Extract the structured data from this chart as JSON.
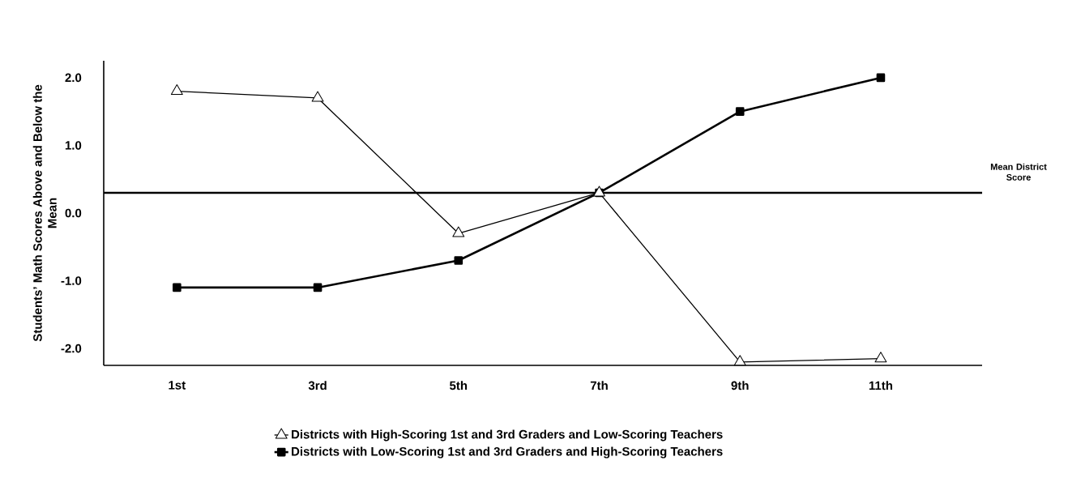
{
  "chart_data": {
    "type": "line",
    "ylabel": "Students’ Math Scores Above and Below the Mean",
    "categories": [
      "1st",
      "3rd",
      "5th",
      "7th",
      "9th",
      "11th"
    ],
    "series": [
      {
        "name": "Districts with High-Scoring 1st and 3rd Graders and Low-Scoring Teachers",
        "color": "#000000",
        "marker": "triangle",
        "values": [
          1.8,
          1.7,
          -0.3,
          0.3,
          -2.2,
          -2.15
        ]
      },
      {
        "name": "Districts with Low-Scoring 1st and 3rd Graders and High-Scoring Teachers",
        "color": "#000000",
        "marker": "square",
        "values": [
          -1.1,
          -1.1,
          -0.7,
          0.3,
          1.5,
          2.0
        ]
      }
    ],
    "ylim": [
      -2.25,
      2.25
    ],
    "yticks": [
      {
        "value": -2,
        "label": "-2.0"
      },
      {
        "value": -1,
        "label": "-1.0"
      },
      {
        "value": 0,
        "label": "0.0"
      },
      {
        "value": 1,
        "label": "1.0"
      },
      {
        "value": 2,
        "label": "2.0"
      }
    ],
    "ref_lines": [
      {
        "axis": "y",
        "value": 0.3,
        "label": "Mean District Score",
        "color": "#000000"
      }
    ],
    "legend": "bottom",
    "line_style": "solid"
  }
}
